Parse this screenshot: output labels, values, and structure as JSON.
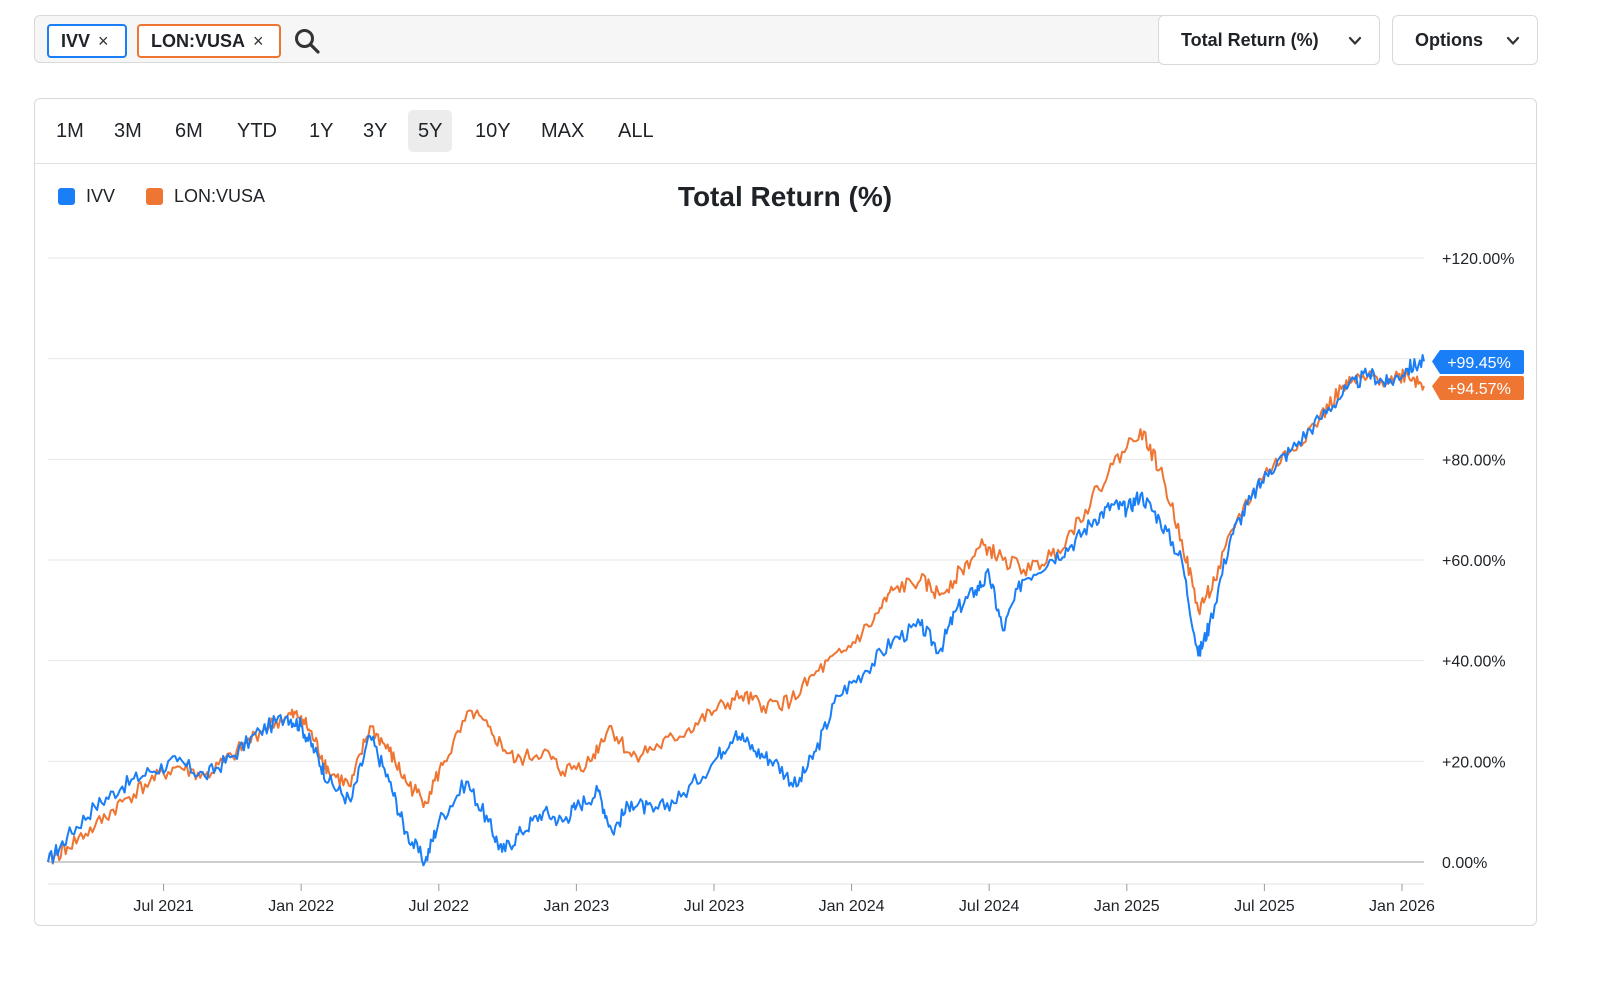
{
  "search": {
    "chips": [
      {
        "label": "IVV",
        "color": "#1a7ef7"
      },
      {
        "label": "LON:VUSA",
        "color": "#ef7533"
      }
    ],
    "remove_glyph": "×",
    "placeholder": ""
  },
  "controls": {
    "metric_label": "Total Return (%)",
    "options_label": "Options"
  },
  "ranges": {
    "items": [
      "1M",
      "3M",
      "6M",
      "YTD",
      "1Y",
      "3Y",
      "5Y",
      "10Y",
      "MAX",
      "ALL"
    ],
    "selected": "5Y"
  },
  "chart_data": {
    "type": "line",
    "title": "Total Return (%)",
    "legend": [
      {
        "name": "IVV",
        "color": "#1a7ef7"
      },
      {
        "name": "LON:VUSA",
        "color": "#ef7533"
      }
    ],
    "y_ticks": [
      {
        "value": 0,
        "label": "0.00%"
      },
      {
        "value": 20,
        "label": "+20.00%"
      },
      {
        "value": 40,
        "label": "+40.00%"
      },
      {
        "value": 60,
        "label": "+60.00%"
      },
      {
        "value": 80,
        "label": "+80.00%"
      },
      {
        "value": 120,
        "label": "+120.00%"
      }
    ],
    "ylim": [
      0,
      120
    ],
    "x_ticks": [
      {
        "value": 2021.5,
        "label": "Jul 2021"
      },
      {
        "value": 2022.0,
        "label": "Jan 2022"
      },
      {
        "value": 2022.5,
        "label": "Jul 2022"
      },
      {
        "value": 2023.0,
        "label": "Jan 2023"
      },
      {
        "value": 2023.5,
        "label": "Jul 2023"
      },
      {
        "value": 2024.0,
        "label": "Jan 2024"
      },
      {
        "value": 2024.5,
        "label": "Jul 2024"
      },
      {
        "value": 2025.0,
        "label": "Jan 2025"
      },
      {
        "value": 2025.5,
        "label": "Jul 2025"
      },
      {
        "value": 2026.0,
        "label": "Jan 2026"
      }
    ],
    "xlim": [
      2021.08,
      2026.08
    ],
    "series": [
      {
        "name": "IVV",
        "color": "#1a7ef7",
        "end_label": "+99.45%",
        "points": [
          [
            2021.08,
            0
          ],
          [
            2021.15,
            5
          ],
          [
            2021.25,
            11
          ],
          [
            2021.35,
            15
          ],
          [
            2021.45,
            18
          ],
          [
            2021.55,
            20
          ],
          [
            2021.65,
            17
          ],
          [
            2021.75,
            21
          ],
          [
            2021.85,
            26
          ],
          [
            2021.95,
            29
          ],
          [
            2022.0,
            27
          ],
          [
            2022.05,
            22
          ],
          [
            2022.1,
            16
          ],
          [
            2022.18,
            12
          ],
          [
            2022.25,
            25
          ],
          [
            2022.32,
            16
          ],
          [
            2022.38,
            6
          ],
          [
            2022.45,
            0
          ],
          [
            2022.5,
            8
          ],
          [
            2022.6,
            16
          ],
          [
            2022.68,
            8
          ],
          [
            2022.73,
            2
          ],
          [
            2022.8,
            6
          ],
          [
            2022.88,
            10
          ],
          [
            2022.95,
            8
          ],
          [
            2023.0,
            11
          ],
          [
            2023.08,
            14
          ],
          [
            2023.13,
            6
          ],
          [
            2023.2,
            12
          ],
          [
            2023.28,
            10
          ],
          [
            2023.38,
            13
          ],
          [
            2023.5,
            20
          ],
          [
            2023.58,
            26
          ],
          [
            2023.65,
            22
          ],
          [
            2023.72,
            20
          ],
          [
            2023.8,
            15
          ],
          [
            2023.87,
            22
          ],
          [
            2023.95,
            33
          ],
          [
            2024.05,
            38
          ],
          [
            2024.15,
            44
          ],
          [
            2024.25,
            47
          ],
          [
            2024.32,
            42
          ],
          [
            2024.38,
            50
          ],
          [
            2024.45,
            54
          ],
          [
            2024.5,
            57
          ],
          [
            2024.55,
            46
          ],
          [
            2024.62,
            56
          ],
          [
            2024.72,
            60
          ],
          [
            2024.8,
            63
          ],
          [
            2024.88,
            68
          ],
          [
            2024.95,
            71
          ],
          [
            2025.0,
            70
          ],
          [
            2025.05,
            73
          ],
          [
            2025.12,
            68
          ],
          [
            2025.2,
            60
          ],
          [
            2025.26,
            41
          ],
          [
            2025.3,
            47
          ],
          [
            2025.38,
            65
          ],
          [
            2025.45,
            72
          ],
          [
            2025.52,
            78
          ],
          [
            2025.6,
            82
          ],
          [
            2025.7,
            88
          ],
          [
            2025.8,
            94
          ],
          [
            2025.88,
            97
          ],
          [
            2025.95,
            95
          ],
          [
            2026.02,
            98
          ],
          [
            2026.08,
            99.45
          ]
        ]
      },
      {
        "name": "LON:VUSA",
        "color": "#ef7533",
        "end_label": "+94.57%",
        "points": [
          [
            2021.08,
            0
          ],
          [
            2021.15,
            3
          ],
          [
            2021.25,
            7
          ],
          [
            2021.35,
            12
          ],
          [
            2021.45,
            16
          ],
          [
            2021.55,
            19
          ],
          [
            2021.65,
            17
          ],
          [
            2021.75,
            21
          ],
          [
            2021.85,
            26
          ],
          [
            2021.95,
            29
          ],
          [
            2022.0,
            29
          ],
          [
            2022.05,
            24
          ],
          [
            2022.1,
            18
          ],
          [
            2022.18,
            15
          ],
          [
            2022.25,
            27
          ],
          [
            2022.32,
            22
          ],
          [
            2022.38,
            16
          ],
          [
            2022.45,
            12
          ],
          [
            2022.52,
            20
          ],
          [
            2022.62,
            30
          ],
          [
            2022.7,
            25
          ],
          [
            2022.78,
            20
          ],
          [
            2022.88,
            22
          ],
          [
            2022.95,
            18
          ],
          [
            2023.05,
            20
          ],
          [
            2023.12,
            27
          ],
          [
            2023.2,
            21
          ],
          [
            2023.3,
            23
          ],
          [
            2023.4,
            26
          ],
          [
            2023.5,
            30
          ],
          [
            2023.6,
            33
          ],
          [
            2023.68,
            31
          ],
          [
            2023.78,
            32
          ],
          [
            2023.88,
            38
          ],
          [
            2023.98,
            42
          ],
          [
            2024.08,
            48
          ],
          [
            2024.15,
            54
          ],
          [
            2024.25,
            56
          ],
          [
            2024.32,
            53
          ],
          [
            2024.4,
            58
          ],
          [
            2024.48,
            63
          ],
          [
            2024.55,
            60
          ],
          [
            2024.65,
            58
          ],
          [
            2024.75,
            62
          ],
          [
            2024.85,
            70
          ],
          [
            2024.95,
            79
          ],
          [
            2025.05,
            86
          ],
          [
            2025.12,
            78
          ],
          [
            2025.2,
            64
          ],
          [
            2025.26,
            50
          ],
          [
            2025.32,
            56
          ],
          [
            2025.4,
            68
          ],
          [
            2025.5,
            77
          ],
          [
            2025.6,
            82
          ],
          [
            2025.7,
            88
          ],
          [
            2025.78,
            94
          ],
          [
            2025.85,
            96
          ],
          [
            2025.95,
            96
          ],
          [
            2026.02,
            97
          ],
          [
            2026.08,
            94.57
          ]
        ]
      }
    ]
  }
}
